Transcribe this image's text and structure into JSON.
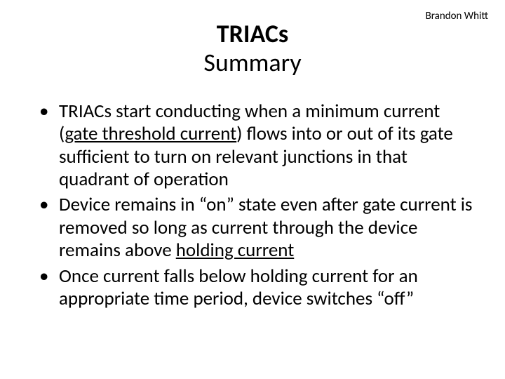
{
  "author": "Brandon Whitt",
  "title": {
    "line1": "TRIACs",
    "line2": "Summary"
  },
  "bullets": {
    "b1_part1": "TRIACs start conducting when a minimum current (",
    "b1_underline1": "gate threshold current",
    "b1_part2": ") flows into or out of its gate sufficient to turn on relevant junctions in that quadrant of operation",
    "b2_part1": "Device remains in “on” state even after gate current is removed so long as current through the device remains above ",
    "b2_underline1": "holding current",
    "b3": "Once current falls below holding current for an appropriate time period, device switches “off”"
  },
  "styling": {
    "background_color": "#ffffff",
    "text_color": "#000000",
    "title_fontsize": 36,
    "body_fontsize": 27,
    "author_fontsize": 15,
    "font_family": "Calibri"
  }
}
